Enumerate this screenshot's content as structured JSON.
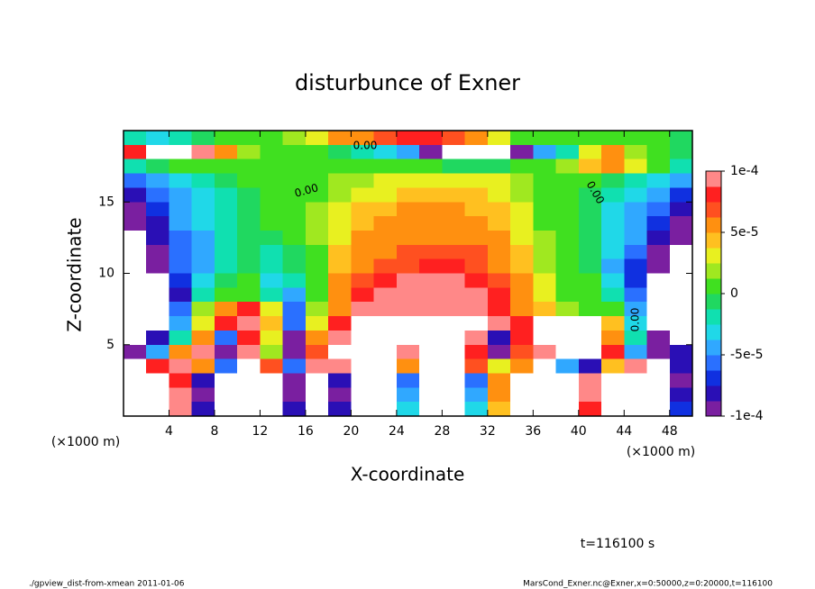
{
  "chart_data": {
    "type": "contour",
    "title": "disturbunce of Exner",
    "xlabel": "X-coordinate",
    "ylabel": "Z-coordinate",
    "x_unit": "(×1000 m)",
    "x_unit_right": "(×1000 m)",
    "time_label": "t=116100 s",
    "footer_left": "./gpview_dist-from-xmean  2011-01-06",
    "footer_right": "MarsCond_Exner.nc@Exner,x=0:50000,z=0:20000,t=116100",
    "contour_labels": [
      "0.00",
      "0.00",
      "0.00",
      "0.00"
    ],
    "xlim": [
      0,
      50
    ],
    "ylim": [
      0,
      20
    ],
    "xticks": [
      4,
      8,
      12,
      16,
      20,
      24,
      28,
      32,
      36,
      40,
      44,
      48
    ],
    "yticks": [
      5,
      10,
      15
    ],
    "zlim": [
      -0.0001,
      0.0001
    ],
    "zticks": [
      {
        "value": 0.0001,
        "label": "1e-4"
      },
      {
        "value": 5e-05,
        "label": "5e-5"
      },
      0,
      {
        "value": -5e-05,
        "label": "-5e-5"
      },
      {
        "value": -0.0001,
        "label": "-1e-4"
      }
    ],
    "colors": [
      "#7a1fa0",
      "#2a0fb5",
      "#1030e0",
      "#2a70ff",
      "#30a8ff",
      "#20d8e8",
      "#10e0b0",
      "#20d860",
      "#40e020",
      "#a0e820",
      "#e8f020",
      "#ffc020",
      "#ff9010",
      "#ff5020",
      "#ff2020",
      "#ff8888"
    ],
    "outside_color": "#ffffff",
    "x": [
      1,
      3,
      5,
      7,
      9,
      11,
      13,
      15,
      17,
      19,
      21,
      23,
      25,
      27,
      29,
      31,
      33,
      35,
      37,
      39,
      41,
      43,
      45,
      47,
      49
    ],
    "y": [
      19.5,
      18.5,
      17.5,
      16.5,
      15.5,
      14.5,
      13.5,
      12.5,
      11.5,
      10.5,
      9.5,
      8.5,
      7.5,
      6.5,
      5.5,
      4.5,
      3.5,
      2.5,
      1.5,
      0.5
    ],
    "z": [
      [
        -2e-05,
        -3e-05,
        -2e-05,
        -1e-05,
        0,
        0,
        1e-05,
        2e-05,
        3e-05,
        5e-05,
        6e-05,
        7e-05,
        8e-05,
        8e-05,
        7e-05,
        5e-05,
        3e-05,
        1e-05,
        0,
        0,
        1e-05,
        1e-05,
        1e-05,
        0,
        -1e-05
      ],
      [
        8e-05,
        0.00012,
        0.00012,
        9e-05,
        5e-05,
        2e-05,
        1e-05,
        0,
        0,
        -1e-05,
        -2e-05,
        -3e-05,
        -5e-05,
        -9e-05,
        -0.0002,
        -0.0002,
        -0.0002,
        -9e-05,
        -5e-05,
        -2e-05,
        3e-05,
        5e-05,
        2e-05,
        0,
        -1e-05
      ],
      [
        -2e-05,
        -1e-05,
        0,
        0,
        1e-05,
        1e-05,
        1e-05,
        1e-05,
        1e-05,
        1e-05,
        1e-05,
        1e-05,
        0,
        0,
        -1e-05,
        -1e-05,
        -1e-05,
        0,
        1e-05,
        2e-05,
        4e-05,
        5e-05,
        3e-05,
        0,
        -2e-05
      ],
      [
        -6e-05,
        -4e-05,
        -3e-05,
        -2e-05,
        -1e-05,
        0,
        0,
        1e-05,
        1e-05,
        2e-05,
        2e-05,
        3e-05,
        3e-05,
        3e-05,
        3e-05,
        3e-05,
        3e-05,
        2e-05,
        1e-05,
        0,
        0,
        -1e-05,
        -2e-05,
        -3e-05,
        -5e-05
      ],
      [
        -8e-05,
        -6e-05,
        -4e-05,
        -3e-05,
        -2e-05,
        -1e-05,
        0,
        1e-05,
        1e-05,
        2e-05,
        3e-05,
        3e-05,
        4e-05,
        4e-05,
        4e-05,
        4e-05,
        3e-05,
        2e-05,
        1e-05,
        0,
        -1e-05,
        -2e-05,
        -3e-05,
        -5e-05,
        -7e-05
      ],
      [
        -9e-05,
        -7e-05,
        -5e-05,
        -3e-05,
        -2e-05,
        -1e-05,
        0,
        1e-05,
        2e-05,
        3e-05,
        4e-05,
        4e-05,
        5e-05,
        5e-05,
        5e-05,
        4e-05,
        4e-05,
        3e-05,
        1e-05,
        0,
        -1e-05,
        -3e-05,
        -4e-05,
        -6e-05,
        -8e-05
      ],
      [
        -0.0001,
        -8e-05,
        -5e-05,
        -3e-05,
        -2e-05,
        -1e-05,
        0,
        1e-05,
        2e-05,
        3e-05,
        4e-05,
        5e-05,
        6e-05,
        6e-05,
        6e-05,
        5e-05,
        4e-05,
        3e-05,
        1e-05,
        0,
        -1e-05,
        -3e-05,
        -5e-05,
        -7e-05,
        -9e-05
      ],
      [
        -0.00011,
        -8e-05,
        -6e-05,
        -4e-05,
        -2e-05,
        -1e-05,
        -1e-05,
        0,
        2e-05,
        3e-05,
        5e-05,
        6e-05,
        6e-05,
        6e-05,
        6e-05,
        6e-05,
        5e-05,
        3e-05,
        2e-05,
        0,
        -1e-05,
        -3e-05,
        -5e-05,
        -8e-05,
        -0.0001
      ],
      [
        -0.0002,
        -9e-05,
        -6e-05,
        -4e-05,
        -2e-05,
        -1e-05,
        -2e-05,
        -1e-05,
        1e-05,
        4e-05,
        5e-05,
        6e-05,
        7e-05,
        7e-05,
        7e-05,
        7e-05,
        6e-05,
        4e-05,
        2e-05,
        0,
        -1e-05,
        -3e-05,
        -6e-05,
        -9e-05,
        -0.0002
      ],
      [
        -0.0002,
        -0.0001,
        -6e-05,
        -4e-05,
        -2e-05,
        -1e-05,
        -2e-05,
        -1e-05,
        1e-05,
        4e-05,
        6e-05,
        7e-05,
        7e-05,
        8e-05,
        8e-05,
        7e-05,
        6e-05,
        4e-05,
        2e-05,
        0,
        -1e-05,
        -4e-05,
        -7e-05,
        -0.0001,
        -0.0002
      ],
      [
        -0.0002,
        -0.0002,
        -7e-05,
        -3e-05,
        -1e-05,
        0,
        -3e-05,
        -2e-05,
        1e-05,
        5e-05,
        7e-05,
        8e-05,
        9e-05,
        9e-05,
        9e-05,
        8e-05,
        7e-05,
        5e-05,
        3e-05,
        1e-05,
        0,
        -3e-05,
        -7e-05,
        -0.0002,
        -0.0002
      ],
      [
        -0.0002,
        -0.0002,
        -8e-05,
        -2e-05,
        1e-05,
        1e-05,
        -2e-05,
        -4e-05,
        1e-05,
        5e-05,
        8e-05,
        9e-05,
        0.0001,
        0.0001,
        9e-05,
        9e-05,
        8e-05,
        6e-05,
        3e-05,
        1e-05,
        0,
        -2e-05,
        -6e-05,
        -0.0002,
        -0.0002
      ],
      [
        -0.0002,
        -0.0002,
        -6e-05,
        2e-05,
        6e-05,
        8e-05,
        3e-05,
        -6e-05,
        2e-05,
        6e-05,
        9e-05,
        0.0001,
        0.0001,
        0.0001,
        9e-05,
        9e-05,
        8e-05,
        6e-05,
        4e-05,
        2e-05,
        1e-05,
        1e-05,
        -4e-05,
        -0.0002,
        -0.0002
      ],
      [
        -0.0002,
        -0.0002,
        -5e-05,
        3e-05,
        8e-05,
        9e-05,
        4e-05,
        -6e-05,
        3e-05,
        8e-05,
        0.0002,
        0.0002,
        0.0002,
        0.0002,
        0.0002,
        0.0002,
        9e-05,
        8e-05,
        0.0002,
        0.0002,
        0.0002,
        4e-05,
        -3e-05,
        -0.0002,
        -0.0002
      ],
      [
        -0.0002,
        -8e-05,
        -2e-05,
        5e-05,
        -6e-05,
        8e-05,
        3e-05,
        -9e-05,
        5e-05,
        9e-05,
        0.0002,
        0.0002,
        0.0002,
        0.0002,
        0.0002,
        9e-05,
        -8e-05,
        8e-05,
        0.0002,
        0.0002,
        0.0002,
        5e-05,
        -2e-05,
        -0.0001,
        -0.0002
      ],
      [
        -9e-05,
        -5e-05,
        6e-05,
        9e-05,
        -9e-05,
        9e-05,
        2e-05,
        -0.0001,
        7e-05,
        0.0002,
        0.0002,
        0.0002,
        9e-05,
        0.0002,
        0.0002,
        8e-05,
        -9e-05,
        7e-05,
        9e-05,
        0.0002,
        0.0002,
        8e-05,
        -4e-05,
        -9e-05,
        -8e-05
      ],
      [
        -0.0002,
        8e-05,
        9e-05,
        5e-05,
        -6e-05,
        0.0002,
        7e-05,
        -6e-05,
        9e-05,
        9e-05,
        0.0002,
        0.0002,
        6e-05,
        0.0002,
        0.0002,
        7e-05,
        3e-05,
        5e-05,
        -0.0002,
        -4e-05,
        -8e-05,
        4e-05,
        9e-05,
        -0.0002,
        -8e-05
      ],
      [
        -0.0002,
        -0.0002,
        8e-05,
        -8e-05,
        0.0002,
        0.0002,
        0.0002,
        -9e-05,
        0.0002,
        -8e-05,
        0.0002,
        0.0002,
        -6e-05,
        0.0002,
        0.0002,
        -6e-05,
        6e-05,
        -0.0002,
        -0.0002,
        -0.0002,
        9e-05,
        0.0002,
        0.0002,
        -0.0002,
        -9e-05
      ],
      [
        -0.0002,
        -0.0002,
        9e-05,
        -9e-05,
        0.0002,
        0.0002,
        0.0002,
        -9e-05,
        0.0002,
        -9e-05,
        0.0002,
        0.0002,
        -5e-05,
        0.0002,
        0.0002,
        -5e-05,
        5e-05,
        -0.0002,
        -0.0002,
        -0.0002,
        9e-05,
        0.0002,
        0.0002,
        -0.0002,
        -8e-05
      ],
      [
        -0.0002,
        -0.0002,
        9e-05,
        -8e-05,
        0.0002,
        0.0002,
        0.0002,
        -8e-05,
        0.0002,
        -8e-05,
        0.0002,
        0.0002,
        -3e-05,
        0.0002,
        0.0002,
        -3e-05,
        4e-05,
        -0.0002,
        -0.0002,
        -0.0002,
        8e-05,
        0.0002,
        0.0002,
        -0.0002,
        -7e-05
      ]
    ]
  }
}
